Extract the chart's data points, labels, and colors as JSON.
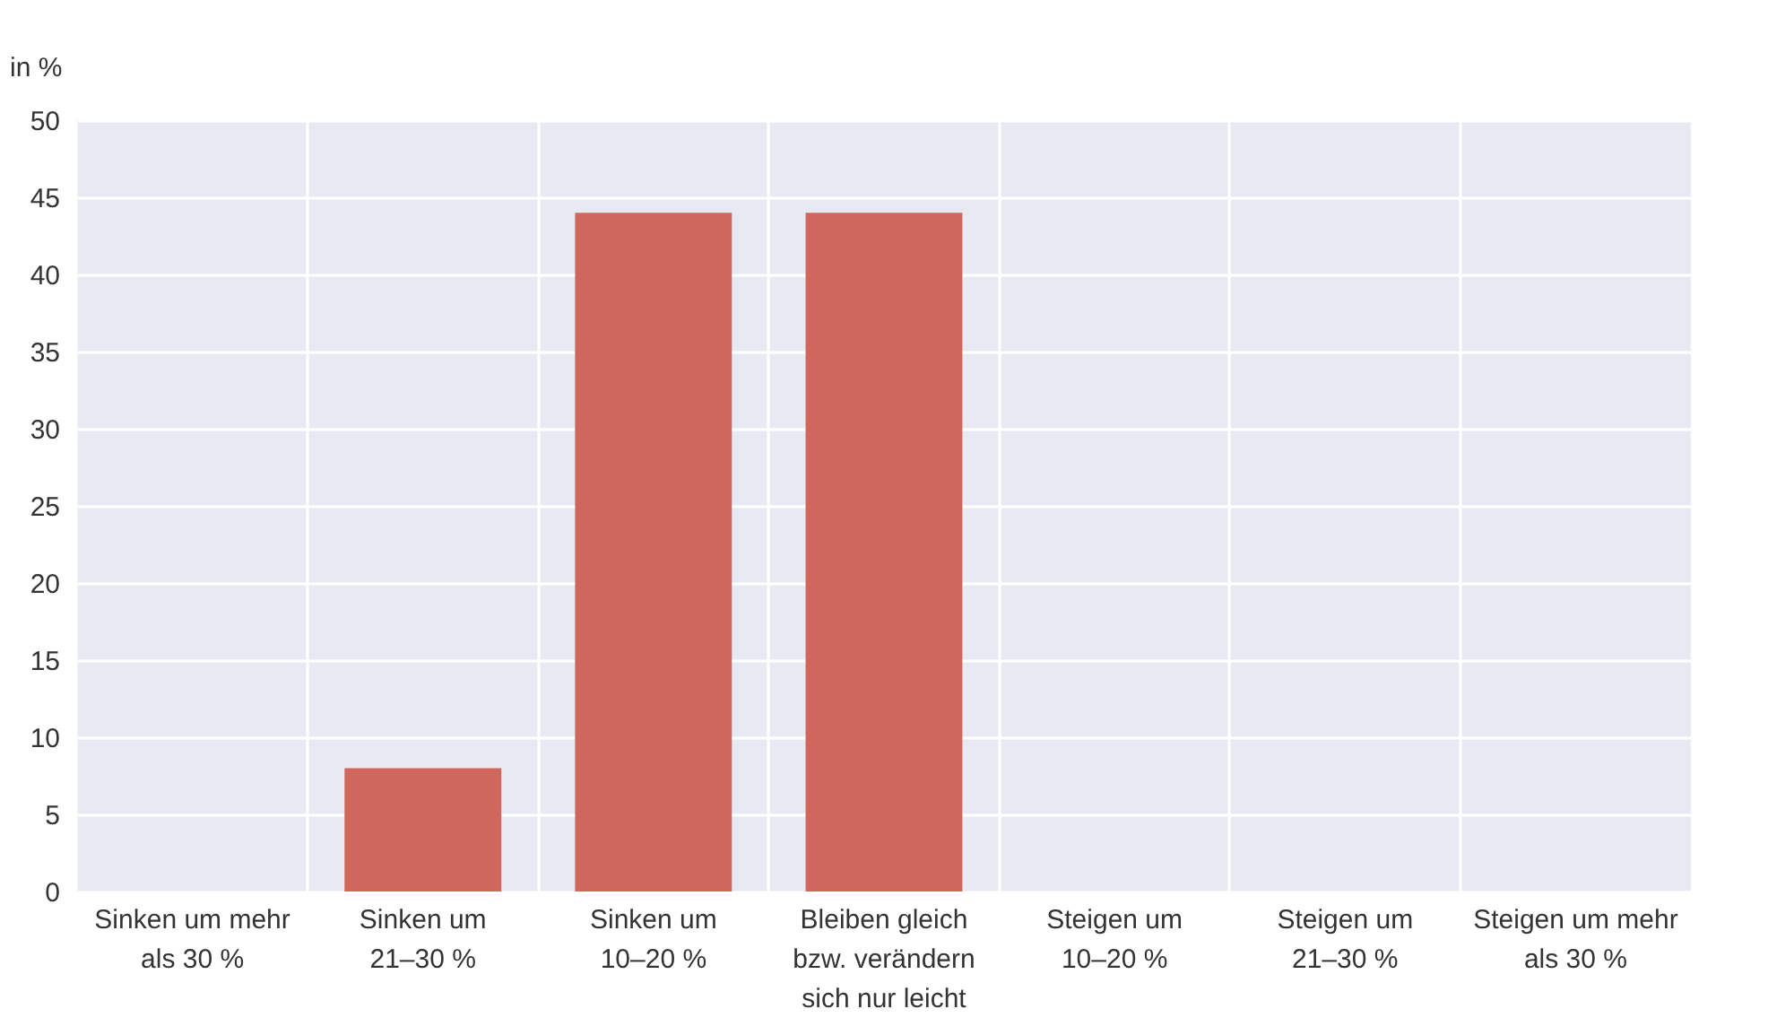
{
  "chart_data": {
    "type": "bar",
    "ylabel": "in %",
    "categories": [
      "Sinken um mehr\nals 30 %",
      "Sinken um\n21–30 %",
      "Sinken um\n10–20 %",
      "Bleiben gleich\nbzw. verändern\nsich nur leicht",
      "Steigen um\n10–20 %",
      "Steigen um\n21–30 %",
      "Steigen um mehr\nals 30 %"
    ],
    "values": [
      0,
      8,
      44,
      44,
      0,
      0,
      0
    ],
    "color": "#cf675d",
    "ylim": [
      0,
      50
    ],
    "yticks": [
      0,
      5,
      10,
      15,
      20,
      25,
      30,
      35,
      40,
      45,
      50
    ],
    "grid": true
  }
}
